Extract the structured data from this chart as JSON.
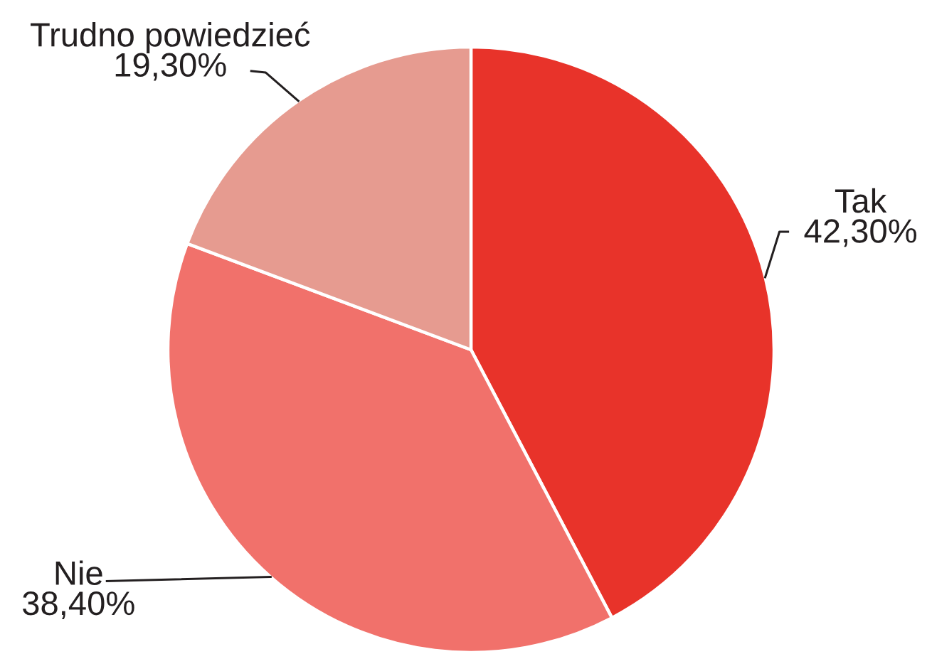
{
  "chart_data": {
    "type": "pie",
    "categories": [
      "Tak",
      "Nie",
      "Trudno powiedzieć"
    ],
    "values": [
      42.3,
      38.4,
      19.3
    ],
    "value_labels": [
      "42,30%",
      "38,40%",
      "19,30%"
    ],
    "colors": [
      "#e8332a",
      "#f1716b",
      "#e69b90"
    ]
  }
}
